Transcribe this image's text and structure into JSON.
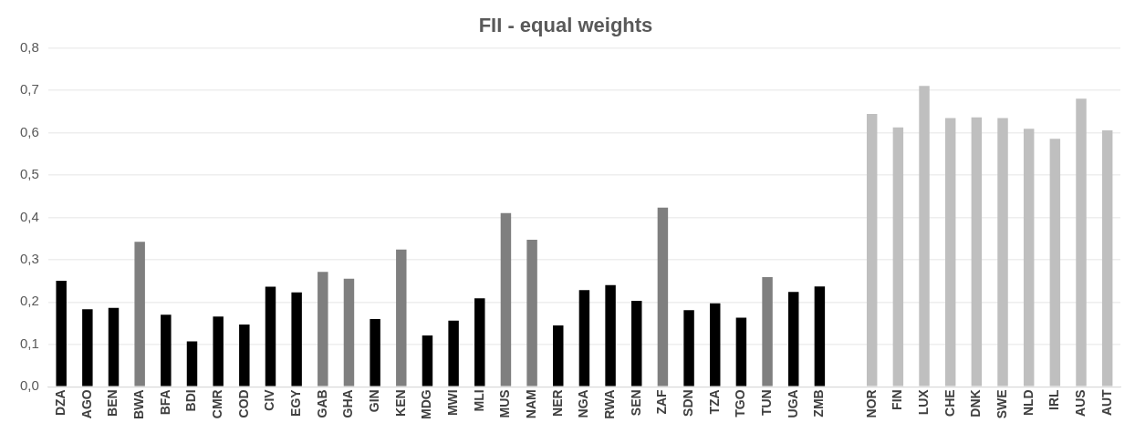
{
  "chart_data": {
    "type": "bar",
    "title": "FII - equal weights",
    "categories": [
      "DZA",
      "AGO",
      "BEN",
      "BWA",
      "BFA",
      "BDI",
      "CMR",
      "COD",
      "CIV",
      "EGY",
      "GAB",
      "GHA",
      "GIN",
      "KEN",
      "MDG",
      "MWI",
      "MLI",
      "MUS",
      "NAM",
      "NER",
      "NGA",
      "RWA",
      "SEN",
      "ZAF",
      "SDN",
      "TZA",
      "TGO",
      "TUN",
      "UGA",
      "ZMB",
      null,
      "NOR",
      "FIN",
      "LUX",
      "CHE",
      "DNK",
      "SWE",
      "NLD",
      "IRL",
      "AUS",
      "AUT"
    ],
    "values": [
      0.25,
      0.183,
      0.186,
      0.342,
      0.17,
      0.107,
      0.166,
      0.147,
      0.236,
      0.223,
      0.271,
      0.255,
      0.16,
      0.324,
      0.121,
      0.156,
      0.209,
      0.41,
      0.347,
      0.145,
      0.228,
      0.24,
      0.203,
      0.423,
      0.181,
      0.197,
      0.163,
      0.259,
      0.224,
      0.237,
      null,
      0.644,
      0.612,
      0.71,
      0.634,
      0.636,
      0.634,
      0.609,
      0.585,
      0.68,
      0.605
    ],
    "colors": [
      "#000000",
      "#000000",
      "#000000",
      "#7f7f7f",
      "#000000",
      "#000000",
      "#000000",
      "#000000",
      "#000000",
      "#000000",
      "#7f7f7f",
      "#7f7f7f",
      "#000000",
      "#7f7f7f",
      "#000000",
      "#000000",
      "#000000",
      "#7f7f7f",
      "#7f7f7f",
      "#000000",
      "#000000",
      "#000000",
      "#000000",
      "#7f7f7f",
      "#000000",
      "#000000",
      "#000000",
      "#7f7f7f",
      "#000000",
      "#000000",
      "#000000",
      "#bfbfbf",
      "#bfbfbf",
      "#bfbfbf",
      "#bfbfbf",
      "#bfbfbf",
      "#bfbfbf",
      "#bfbfbf",
      "#bfbfbf",
      "#bfbfbf",
      "#bfbfbf"
    ],
    "ylim": [
      0,
      0.8
    ],
    "yticks": [
      {
        "value": 0,
        "label": "0,0"
      },
      {
        "value": 0.1,
        "label": "0,1"
      },
      {
        "value": 0.2,
        "label": "0,2"
      },
      {
        "value": 0.3,
        "label": "0,3"
      },
      {
        "value": 0.4,
        "label": "0,4"
      },
      {
        "value": 0.5,
        "label": "0,5"
      },
      {
        "value": 0.6,
        "label": "0,6"
      },
      {
        "value": 0.7,
        "label": "0,7"
      },
      {
        "value": 0.8,
        "label": "0,8"
      }
    ],
    "grid": "y",
    "legend": false
  }
}
